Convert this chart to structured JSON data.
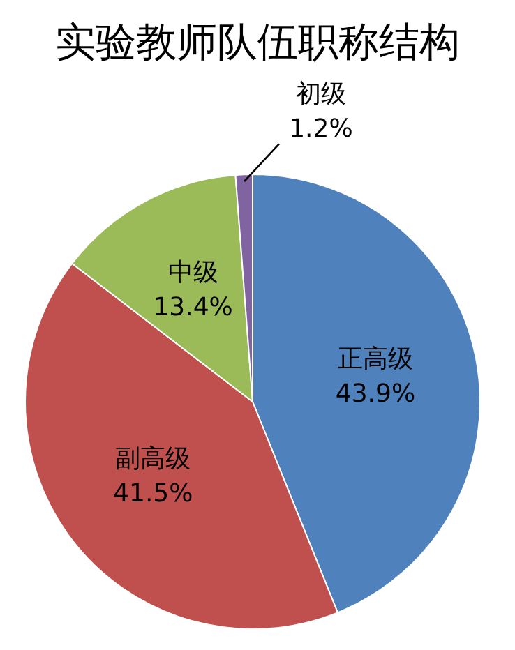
{
  "chart_data": {
    "type": "pie",
    "title": "实验教师队伍职称结构",
    "categories": [
      "正高级",
      "副高级",
      "中级",
      "初级"
    ],
    "values": [
      43.9,
      41.5,
      13.4,
      1.2
    ],
    "colors": [
      "#4f81bd",
      "#c0504d",
      "#9bbb59",
      "#8064a2"
    ],
    "value_labels": [
      "43.9%",
      "41.5%",
      "13.4%",
      "1.2%"
    ]
  }
}
